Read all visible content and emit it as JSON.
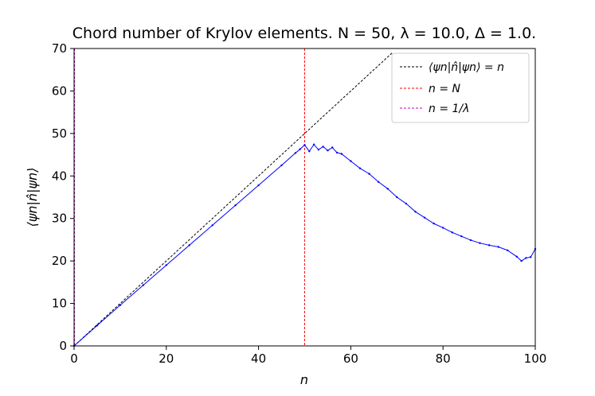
{
  "chart_data": {
    "type": "line",
    "title": "Chord number of Krylov elements. N = 50, λ = 10.0, Δ = 1.0.",
    "xlabel": "n",
    "ylabel": "⟨ψn|n̂|ψn⟩",
    "xlim": [
      0,
      100
    ],
    "ylim": [
      0,
      70
    ],
    "x_ticks": [
      0,
      20,
      40,
      60,
      80,
      100
    ],
    "y_ticks": [
      0,
      10,
      20,
      30,
      40,
      50,
      60,
      70
    ],
    "grid": false,
    "legend_position": "top-right",
    "series": [
      {
        "name": "⟨ψn|n̂|ψn⟩ = n",
        "color": "#000000",
        "style": "dashed",
        "x": [
          0,
          69
        ],
        "y": [
          0,
          69
        ]
      },
      {
        "name": "",
        "color": "#0000ff",
        "style": "solid-markers",
        "x": [
          0,
          5,
          10,
          15,
          20,
          25,
          30,
          35,
          40,
          45,
          48,
          49,
          50,
          51,
          52,
          53,
          54,
          55,
          56,
          57,
          58,
          60,
          62,
          64,
          66,
          68,
          70,
          72,
          74,
          76,
          78,
          80,
          82,
          84,
          86,
          88,
          90,
          92,
          94,
          96,
          97,
          98,
          99,
          100
        ],
        "y": [
          0,
          4.8,
          9.6,
          14.3,
          19,
          23.7,
          28.4,
          33.1,
          37.8,
          42.5,
          45.4,
          46.3,
          47.3,
          45.8,
          47.4,
          46.2,
          46.9,
          46,
          46.7,
          45.5,
          45.2,
          43.5,
          41.8,
          40.5,
          38.6,
          37,
          35,
          33.5,
          31.6,
          30.2,
          28.8,
          27.8,
          26.7,
          25.8,
          24.9,
          24.2,
          23.7,
          23.3,
          22.5,
          21,
          20,
          20.7,
          20.9,
          22.8
        ]
      }
    ],
    "vlines": [
      {
        "name": "n = N",
        "x": 50,
        "color": "#ff0000"
      },
      {
        "name": "n = 1/λ",
        "x": 0.1,
        "color": "#bf00bf"
      }
    ]
  }
}
